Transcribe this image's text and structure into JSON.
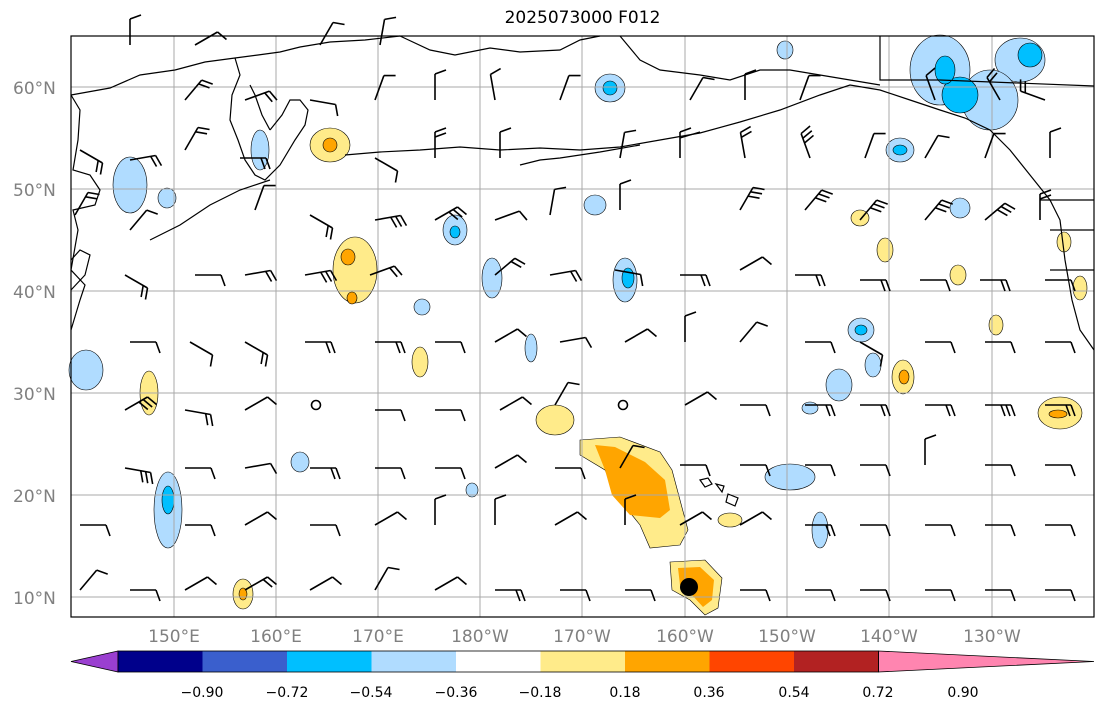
{
  "title": "2025073000 F012",
  "lat_labels": [
    "60°N",
    "50°N",
    "40°N",
    "30°N",
    "20°N",
    "10°N"
  ],
  "lon_labels": [
    "150°E",
    "160°E",
    "170°E",
    "180°W",
    "170°W",
    "160°W",
    "150°W",
    "140°W",
    "130°W"
  ],
  "colorbar": {
    "ticks": [
      "−0.90",
      "−0.72",
      "−0.54",
      "−0.36",
      "−0.18",
      "0.18",
      "0.36",
      "0.54",
      "0.72",
      "0.90"
    ],
    "colors": [
      "#9a3fd0",
      "#00008b",
      "#3a5fcd",
      "#00bfff",
      "#b0dcff",
      "#ffffff",
      "#ffeb8a",
      "#ffa500",
      "#ff4500",
      "#b22222",
      "#ff85b0"
    ]
  },
  "fill_colors": {
    "light_blue": "#b0dcff",
    "blue": "#00bfff",
    "light_yellow": "#ffeb8a",
    "orange": "#ffa500"
  },
  "storm_marker": "black-dot-near-160W-11N"
}
